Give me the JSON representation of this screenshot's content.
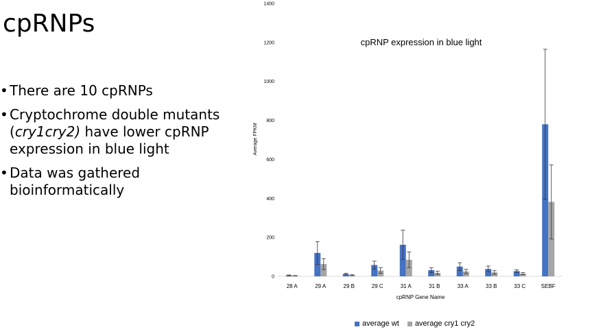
{
  "slide": {
    "title": "cpRNPs",
    "bullets": [
      {
        "text": "There are 10 cpRNPs"
      },
      {
        "pre": "Cryptochrome double mutants (",
        "em": "cry1cry2)",
        "post": " have lower cpRNP expression in blue light"
      },
      {
        "text": "Data was gathered bioinformatically"
      }
    ]
  },
  "chart_data": {
    "type": "bar",
    "title": "cpRNP expression in blue light",
    "xlabel": "cpRNP Gene Name",
    "ylabel": "Average FPKM",
    "ylim": [
      0,
      1400
    ],
    "yticks": [
      0,
      200,
      400,
      600,
      800,
      1000,
      1200,
      1400
    ],
    "categories": [
      "28 A",
      "29 A",
      "29 B",
      "29 C",
      "31 A",
      "31 B",
      "33 A",
      "33 B",
      "33 C",
      "SEBF"
    ],
    "series": [
      {
        "name": "average wt",
        "color": "#4472c4",
        "values": [
          5,
          120,
          12,
          58,
          162,
          32,
          50,
          38,
          27,
          780
        ],
        "errors": [
          2,
          58,
          4,
          20,
          75,
          12,
          20,
          15,
          7,
          385
        ]
      },
      {
        "name": "average cry1 cry2",
        "color": "#a5a5a5",
        "values": [
          3,
          63,
          6,
          30,
          85,
          18,
          25,
          20,
          14,
          382
        ],
        "errors": [
          1,
          28,
          2,
          14,
          40,
          8,
          11,
          9,
          5,
          190
        ]
      }
    ],
    "grid": false,
    "legend_position": "bottom"
  }
}
